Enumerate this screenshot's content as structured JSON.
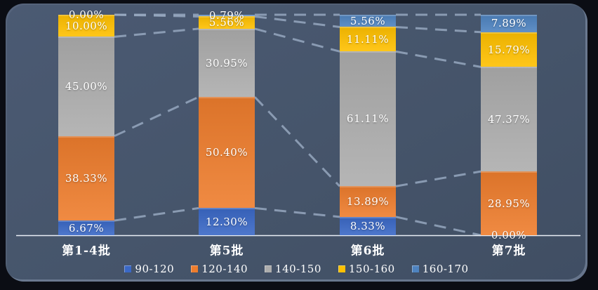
{
  "chart_data": {
    "type": "bar",
    "subtype": "stacked-100-percent",
    "title": "",
    "xlabel": "",
    "ylabel": "",
    "ylim": [
      0,
      100
    ],
    "grid": false,
    "legend_position": "bottom",
    "series_lines": "dashed connectors between segment boundaries of adjacent bars",
    "categories": [
      "第1-4批",
      "第5批",
      "第6批",
      "第7批"
    ],
    "series": [
      {
        "name": "90-120",
        "color": "#3A68C6",
        "values": [
          6.67,
          12.3,
          8.33,
          0.0
        ],
        "labels": [
          "6.67%",
          "12.30%",
          "8.33%",
          "0.00%"
        ]
      },
      {
        "name": "120-140",
        "color": "#EE7D2D",
        "values": [
          38.33,
          50.4,
          13.89,
          28.95
        ],
        "labels": [
          "38.33%",
          "50.40%",
          "13.89%",
          "28.95%"
        ]
      },
      {
        "name": "140-150",
        "color": "#ADADAD",
        "values": [
          45.0,
          30.95,
          61.11,
          47.37
        ],
        "labels": [
          "45.00%",
          "30.95%",
          "61.11%",
          "47.37%"
        ]
      },
      {
        "name": "150-160",
        "color": "#FFC000",
        "values": [
          10.0,
          5.56,
          11.11,
          15.79
        ],
        "labels": [
          "10.00%",
          "5.56%",
          "11.11%",
          "15.79%"
        ]
      },
      {
        "name": "160-170",
        "color": "#4E83C0",
        "values": [
          0.0,
          0.79,
          5.56,
          7.89
        ],
        "labels": [
          "0.00%",
          "0.79%",
          "5.56%",
          "7.89%"
        ]
      }
    ]
  },
  "colors": {
    "background_outer": "#0B0D14",
    "panel_background": "#46556B",
    "axis_line": "#E9EEF5",
    "connector_line": "#9BADC4",
    "value_label_text": "#FFFFFF",
    "category_label_text": "#FFFFFF",
    "legend_text": "#FFFFFF"
  }
}
